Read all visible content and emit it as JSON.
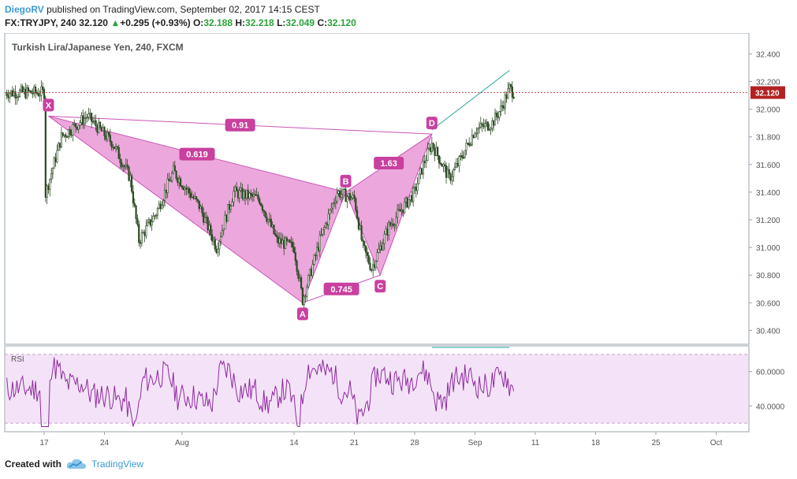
{
  "header": {
    "author": "DiegoRV",
    "published": " published on TradingView.com, September 02, 2017 14:15 CEST",
    "symbol": "FX:TRYJPY, 240",
    "last": "32.120",
    "change_arrow": "▲",
    "change": "+0.295 (+0.93%)",
    "o_label": "O:",
    "o_val": "32.188",
    "h_label": "H:",
    "h_val": "32.218",
    "l_label": "L:",
    "l_val": "32.049",
    "c_label": "C:",
    "c_val": "32.120"
  },
  "footer": {
    "created_with": "Created with",
    "brand": "TradingView"
  },
  "colors": {
    "pattern_fill": "#e58bd0",
    "pattern_line": "#cc55b8",
    "badge": "#c9409f",
    "trend_line": "#26a69a",
    "price_line": "#b22222",
    "rsi_line": "#8e2a9e",
    "rsi_band": "#f4e3f8",
    "candle": "#2d4a24"
  },
  "chart_data": [
    {
      "type": "candlestick",
      "title": "Turkish Lira/Japanese Yen, 240, FXCM",
      "y_ticks": [
        "32.400",
        "32.200",
        "32.000",
        "31.800",
        "31.600",
        "31.400",
        "31.200",
        "31.000",
        "30.800",
        "30.600",
        "30.400"
      ],
      "y_range": [
        30.3,
        32.55
      ],
      "x_ticks": [
        "17",
        "24",
        "Aug",
        "14",
        "21",
        "28",
        "Sep",
        "11",
        "18",
        "25",
        "Oct"
      ],
      "last_price_label": "32.120",
      "series_path": [
        {
          "day": 0,
          "v": 31.35
        },
        {
          "day": 2,
          "v": 31.8
        },
        {
          "day": 5,
          "v": 31.95
        },
        {
          "day": 8,
          "v": 31.75
        },
        {
          "day": 10,
          "v": 31.5
        },
        {
          "day": 11,
          "v": 31.05
        },
        {
          "day": 13,
          "v": 31.25
        },
        {
          "day": 15,
          "v": 31.55
        },
        {
          "day": 18,
          "v": 31.3
        },
        {
          "day": 20,
          "v": 31.0
        },
        {
          "day": 22,
          "v": 31.4
        },
        {
          "day": 25,
          "v": 31.35
        },
        {
          "day": 27,
          "v": 31.05
        },
        {
          "day": 29,
          "v": 31.0
        },
        {
          "day": 30,
          "v": 30.62
        },
        {
          "day": 32,
          "v": 31.05
        },
        {
          "day": 34,
          "v": 31.4
        },
        {
          "day": 36,
          "v": 31.35
        },
        {
          "day": 37,
          "v": 31.0
        },
        {
          "day": 38,
          "v": 30.85
        },
        {
          "day": 40,
          "v": 31.15
        },
        {
          "day": 43,
          "v": 31.4
        },
        {
          "day": 44,
          "v": 31.6
        },
        {
          "day": 45,
          "v": 31.75
        },
        {
          "day": 47,
          "v": 31.5
        },
        {
          "day": 48,
          "v": 31.6
        },
        {
          "day": 50,
          "v": 31.85
        },
        {
          "day": 52,
          "v": 31.9
        },
        {
          "day": 53,
          "v": 32.0
        },
        {
          "day": 54,
          "v": 32.15
        },
        {
          "day": 54.5,
          "v": 32.12
        }
      ],
      "harmonic_pattern": {
        "points": [
          {
            "label": "X",
            "day": 0.5,
            "price": 31.95
          },
          {
            "label": "A",
            "day": 30,
            "price": 30.6
          },
          {
            "label": "B",
            "day": 35,
            "price": 31.4
          },
          {
            "label": "C",
            "day": 39,
            "price": 30.8
          },
          {
            "label": "D",
            "day": 45,
            "price": 31.82
          }
        ],
        "ratios": [
          {
            "label": "0.91",
            "between": "X-D"
          },
          {
            "label": "0.619",
            "between": "X-B"
          },
          {
            "label": "1.63",
            "between": "B-D"
          },
          {
            "label": "0.745",
            "between": "A-C"
          }
        ]
      },
      "trend_line": [
        {
          "day": 45,
          "price": 31.85
        },
        {
          "day": 54,
          "price": 32.28
        }
      ]
    },
    {
      "type": "line",
      "title": "RSI",
      "y_ticks": [
        "60.0000",
        "40.0000"
      ],
      "y_range": [
        25,
        75
      ],
      "bands": [
        70,
        30
      ],
      "divergence_line": [
        {
          "day": 45,
          "v": 75
        },
        {
          "day": 54,
          "v": 75
        }
      ]
    }
  ]
}
